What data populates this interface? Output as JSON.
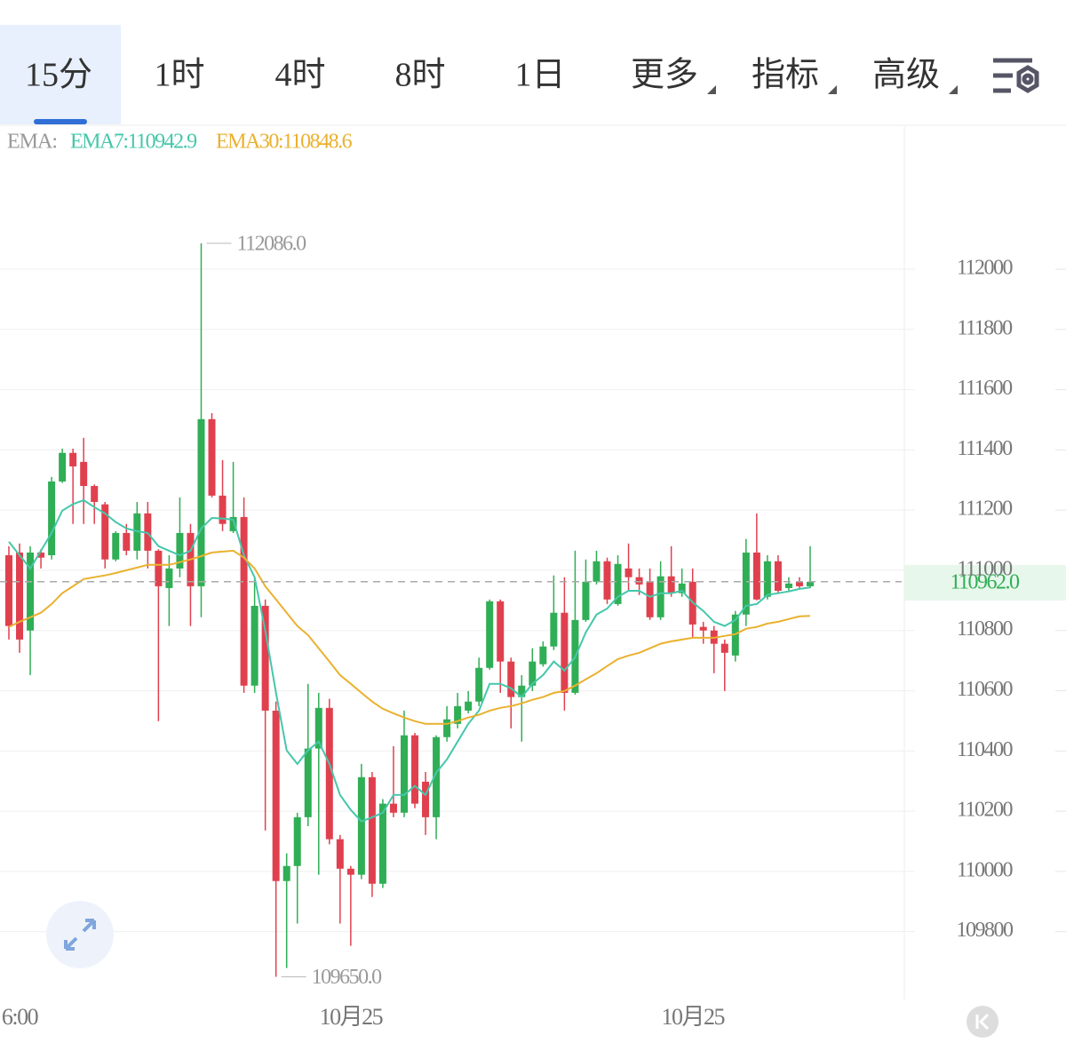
{
  "tabs": [
    "15分",
    "1时",
    "4时",
    "8时",
    "1日",
    "更多",
    "指标",
    "高级"
  ],
  "chart_data": {
    "type": "candlestick",
    "legend_title": "EMA:",
    "high_label": "112086.0",
    "low_label": "109650.0",
    "last_price_label": "110962.0",
    "up_color": "#2fae55",
    "down_color": "#e0404e",
    "grid": true,
    "ylim": [
      109560,
      112475
    ],
    "yticks": [
      109800,
      110000,
      110200,
      110400,
      110600,
      110800,
      111000,
      111200,
      111400,
      111600,
      111800,
      112000
    ],
    "categories": [
      null,
      "6:00",
      null,
      null,
      null,
      null,
      null,
      null,
      null,
      null,
      null,
      null,
      null,
      null,
      null,
      null,
      null,
      null,
      null,
      null,
      null,
      null,
      null,
      null,
      null,
      null,
      null,
      null,
      null,
      null,
      null,
      null,
      "10月25",
      null,
      null,
      null,
      null,
      null,
      null,
      null,
      null,
      null,
      null,
      null,
      null,
      null,
      null,
      null,
      null,
      null,
      null,
      null,
      null,
      null,
      null,
      null,
      null,
      null,
      null,
      null,
      null,
      null,
      null,
      null,
      "10月25",
      null,
      null,
      null,
      null,
      null,
      null,
      null,
      null,
      null,
      null,
      null
    ],
    "open": [
      111050,
      111059,
      110800,
      111059,
      111050,
      111295,
      111390,
      111360,
      111280,
      111219,
      111036,
      111124,
      111065,
      111189,
      111065,
      110941,
      111006,
      111124,
      110947,
      111502,
      111248,
      111130,
      111177,
      110617,
      110882,
      110534,
      109968,
      110018,
      110180,
      110408,
      110543,
      110107,
      110009,
      109989,
      110313,
      109959,
      110225,
      110195,
      110452,
      110298,
      110180,
      110446,
      110490,
      110534,
      110564,
      110676,
      110897,
      110697,
      110579,
      110617,
      110688,
      110747,
      110859,
      110593,
      110835,
      110962,
      111030,
      110888,
      111006,
      110977,
      110962,
      110844,
      110980,
      110924,
      110962,
      110812,
      110800,
      110756,
      110717,
      110853,
      111059,
      110912,
      111030,
      110941,
      110962,
      110947
    ],
    "high": [
      111080,
      111089,
      111080,
      111070,
      111310,
      111404,
      111404,
      111440,
      111285,
      111227,
      111130,
      111154,
      111227,
      111227,
      111070,
      111050,
      111242,
      111154,
      112086,
      111522,
      111366,
      111360,
      111242,
      110977,
      110903,
      110564,
      110060,
      110195,
      110623,
      110593,
      110573,
      110121,
      110018,
      110357,
      110330,
      110240,
      110416,
      110534,
      110460,
      110330,
      110452,
      110549,
      110593,
      110599,
      110710,
      110903,
      110903,
      110710,
      110652,
      110741,
      110764,
      110983,
      110977,
      111065,
      111036,
      111065,
      111042,
      111050,
      111089,
      111006,
      111006,
      111030,
      111080,
      111006,
      111006,
      110829,
      110815,
      110770,
      110865,
      111104,
      111189,
      111050,
      111050,
      110977,
      110977,
      111080
    ],
    "low": [
      110770,
      110726,
      110652,
      111006,
      111036,
      111290,
      111154,
      111154,
      111154,
      111006,
      111030,
      111050,
      111036,
      111006,
      110499,
      110815,
      110977,
      110815,
      110844,
      111242,
      111130,
      111124,
      110593,
      110593,
      110136,
      109650,
      109679,
      109827,
      110150,
      109989,
      110090,
      109827,
      109753,
      109974,
      109915,
      109945,
      110180,
      110180,
      110210,
      110121,
      110107,
      110431,
      110475,
      110525,
      110549,
      110670,
      110593,
      110475,
      110431,
      110599,
      110680,
      110735,
      110534,
      110587,
      110829,
      110953,
      110888,
      110882,
      110932,
      110918,
      110835,
      110835,
      110912,
      110912,
      110776,
      110756,
      110658,
      110599,
      110697,
      110815,
      110900,
      110903,
      110924,
      110932,
      110941,
      110941
    ],
    "close": [
      110815,
      110770,
      111059,
      111042,
      111295,
      111390,
      111345,
      111280,
      111227,
      111036,
      111124,
      111065,
      111189,
      111065,
      110947,
      111006,
      111124,
      110947,
      111502,
      111248,
      111154,
      111177,
      110617,
      110882,
      110534,
      109968,
      110018,
      110180,
      110408,
      110543,
      110107,
      110009,
      109989,
      110313,
      109959,
      110225,
      110195,
      110452,
      110225,
      110180,
      110446,
      110505,
      110549,
      110564,
      110676,
      110897,
      110697,
      110579,
      110617,
      110697,
      110747,
      110859,
      110593,
      110835,
      110962,
      111030,
      110903,
      111021,
      110977,
      110953,
      110844,
      110980,
      110924,
      110956,
      110820,
      110800,
      110756,
      110726,
      110853,
      111059,
      110903,
      111030,
      110932,
      110956,
      110947,
      110962
    ],
    "series": [
      {
        "name": "EMA7:110942.9",
        "color": "#45c7ab",
        "values": [
          111095,
          111050,
          111006,
          111065,
          111124,
          111198,
          111220,
          111233,
          111210,
          111189,
          111160,
          111139,
          111130,
          111124,
          111080,
          111065,
          111050,
          111065,
          111139,
          111174,
          111172,
          111168,
          111050,
          110977,
          110800,
          110593,
          110402,
          110357,
          110402,
          110431,
          110357,
          110254,
          110204,
          110166,
          110180,
          110195,
          110254,
          110254,
          110284,
          110254,
          110328,
          110372,
          110431,
          110490,
          110534,
          110623,
          110623,
          110608,
          110579,
          110623,
          110652,
          110697,
          110667,
          110711,
          110794,
          110853,
          110873,
          110912,
          110932,
          110932,
          110912,
          110924,
          110924,
          110932,
          110894,
          110865,
          110829,
          110815,
          110835,
          110882,
          110888,
          110918,
          110924,
          110930,
          110938,
          110942.9
        ]
      },
      {
        "name": "EMA30:110848.6",
        "color": "#eab12f",
        "values": [
          110812,
          110829,
          110844,
          110859,
          110888,
          110924,
          110947,
          110971,
          110977,
          110983,
          110991,
          111000,
          111009,
          111018,
          111018,
          111018,
          111027,
          111036,
          111047,
          111059,
          111062,
          111065,
          111042,
          111006,
          110947,
          110903,
          110859,
          110815,
          110785,
          110741,
          110697,
          110652,
          110623,
          110593,
          110564,
          110540,
          110525,
          110511,
          110499,
          110490,
          110490,
          110490,
          110499,
          110511,
          110520,
          110534,
          110543,
          110549,
          110558,
          110570,
          110579,
          110593,
          110599,
          110617,
          110638,
          110658,
          110682,
          110705,
          110717,
          110726,
          110741,
          110756,
          110764,
          110770,
          110776,
          110776,
          110776,
          110782,
          110788,
          110806,
          110812,
          110823,
          110829,
          110838,
          110847,
          110848.6
        ]
      }
    ]
  }
}
